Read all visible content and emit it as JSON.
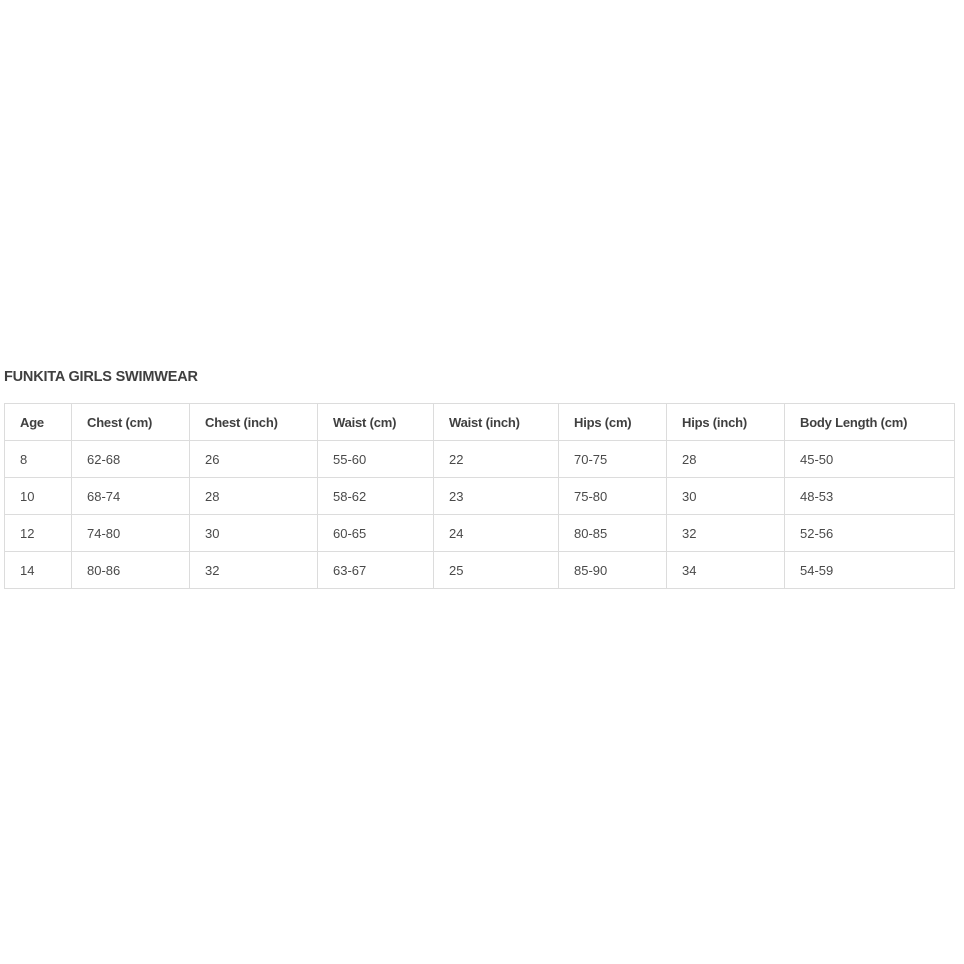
{
  "title": "FUNKITA GIRLS SWIMWEAR",
  "table": {
    "headers": [
      "Age",
      "Chest (cm)",
      "Chest (inch)",
      "Waist (cm)",
      "Waist (inch)",
      "Hips (cm)",
      "Hips (inch)",
      "Body Length (cm)"
    ],
    "rows": [
      [
        "8",
        "62-68",
        "26",
        "55-60",
        "22",
        "70-75",
        "28",
        "45-50"
      ],
      [
        "10",
        "68-74",
        "28",
        "58-62",
        "23",
        "75-80",
        "30",
        "48-53"
      ],
      [
        "12",
        "74-80",
        "30",
        "60-65",
        "24",
        "80-85",
        "32",
        "52-56"
      ],
      [
        "14",
        "80-86",
        "32",
        "63-67",
        "25",
        "85-90",
        "34",
        "54-59"
      ]
    ]
  }
}
